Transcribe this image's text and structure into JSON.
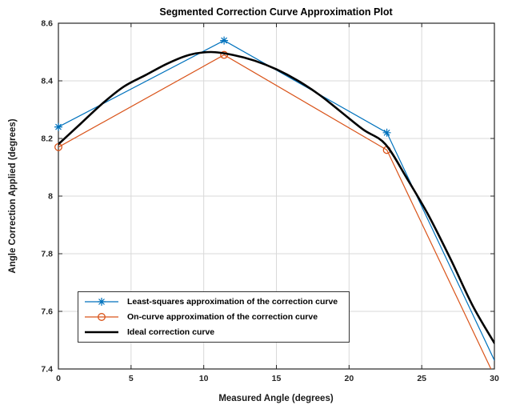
{
  "figure": {
    "background": "#ffffff",
    "axis_color": "#262626",
    "grid_color": "#d9d9d9"
  },
  "chart_data": {
    "type": "line",
    "title": "Segmented Correction Curve Approximation Plot",
    "xlabel": "Measured Angle (degrees)",
    "ylabel": "Angle Correction Applied (degrees)",
    "xlim": [
      0,
      30
    ],
    "ylim": [
      7.4,
      8.6
    ],
    "xticks": [
      0,
      5,
      10,
      15,
      20,
      25,
      30
    ],
    "xtick_labels": [
      "0",
      "5",
      "10",
      "15",
      "20",
      "25",
      "30"
    ],
    "yticks": [
      7.4,
      7.6,
      7.8,
      8.0,
      8.2,
      8.4,
      8.6
    ],
    "ytick_labels": [
      "7.4",
      "7.6",
      "7.8",
      "8",
      "8.2",
      "8.4",
      "8.6"
    ],
    "grid": true,
    "legend_position": "bottom-left",
    "series": [
      {
        "name": "Least-squares approximation of the correction curve",
        "color": "#0072BD",
        "marker": "asterisk",
        "line_width": 1.2,
        "smooth": false,
        "points": [
          [
            0,
            8.24
          ],
          [
            11.4,
            8.54
          ],
          [
            22.6,
            8.22
          ],
          [
            30,
            7.43
          ]
        ],
        "marker_points": [
          [
            0,
            8.24
          ],
          [
            11.4,
            8.54
          ],
          [
            22.6,
            8.22
          ]
        ]
      },
      {
        "name": "On-curve approximation of the correction curve",
        "color": "#D95319",
        "marker": "circle",
        "line_width": 1.2,
        "smooth": false,
        "points": [
          [
            0,
            8.17
          ],
          [
            11.4,
            8.49
          ],
          [
            22.6,
            8.16
          ],
          [
            30,
            7.375
          ]
        ],
        "marker_points": [
          [
            0,
            8.17
          ],
          [
            11.4,
            8.49
          ],
          [
            22.6,
            8.16
          ]
        ]
      },
      {
        "name": "Ideal correction curve",
        "color": "#000000",
        "marker": "none",
        "line_width": 2.6,
        "smooth": true,
        "points": [
          [
            0,
            8.18
          ],
          [
            1.5,
            8.25
          ],
          [
            3,
            8.32
          ],
          [
            4.5,
            8.38
          ],
          [
            6,
            8.42
          ],
          [
            7.5,
            8.46
          ],
          [
            9,
            8.49
          ],
          [
            10.5,
            8.5
          ],
          [
            12,
            8.49
          ],
          [
            13.5,
            8.47
          ],
          [
            15,
            8.44
          ],
          [
            16.5,
            8.4
          ],
          [
            18,
            8.35
          ],
          [
            19.5,
            8.29
          ],
          [
            21,
            8.23
          ],
          [
            22.5,
            8.18
          ],
          [
            24,
            8.06
          ],
          [
            25.5,
            7.93
          ],
          [
            27,
            7.78
          ],
          [
            28.5,
            7.62
          ],
          [
            30,
            7.49
          ]
        ],
        "marker_points": []
      }
    ]
  }
}
